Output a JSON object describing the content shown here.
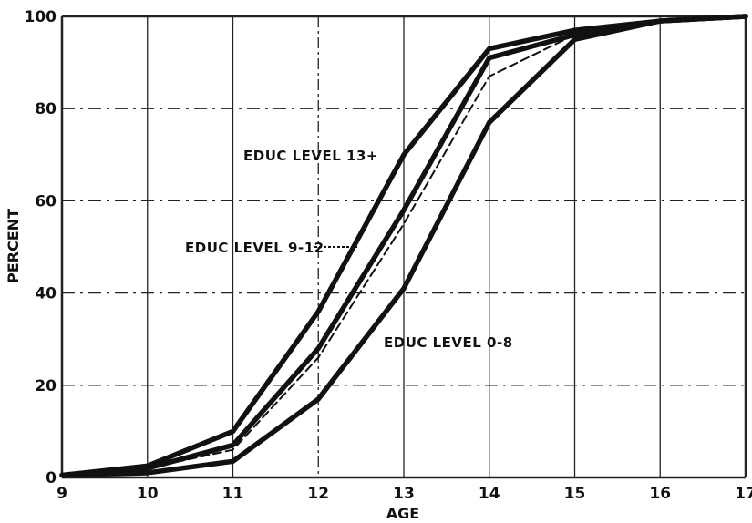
{
  "chart_data": {
    "type": "line",
    "title": "",
    "xlabel": "AGE",
    "ylabel": "PERCENT",
    "xlim": [
      9,
      17
    ],
    "ylim": [
      0,
      100
    ],
    "x_ticks": [
      "9",
      "10",
      "11",
      "12",
      "13",
      "14",
      "15",
      "16",
      "17"
    ],
    "y_ticks": [
      "0",
      "20",
      "40",
      "60",
      "80",
      "100"
    ],
    "grid": true,
    "colors": {
      "line": "#111111",
      "grid": "#222222",
      "background": "#ffffff"
    },
    "x": [
      9,
      10,
      11,
      12,
      13,
      14,
      15,
      16,
      17
    ],
    "series": [
      {
        "style": "solid",
        "values": [
          0.5,
          2.5,
          10,
          36,
          70,
          93,
          97,
          99,
          100
        ]
      },
      {
        "style": "solid",
        "values": [
          0.5,
          2,
          7,
          28,
          58,
          91,
          96,
          99,
          100
        ]
      },
      {
        "style": "dashed",
        "values": [
          0.5,
          2,
          6,
          26,
          55,
          87,
          96,
          99,
          100
        ]
      },
      {
        "style": "solid",
        "values": [
          0.5,
          1,
          3.5,
          17,
          41,
          77,
          95,
          99,
          100
        ]
      }
    ],
    "annotations": [
      {
        "text": "EDUC LEVEL 13+"
      },
      {
        "text": "EDUC LEVEL 9-12"
      },
      {
        "text": "EDUC LEVEL 0-8"
      }
    ]
  }
}
